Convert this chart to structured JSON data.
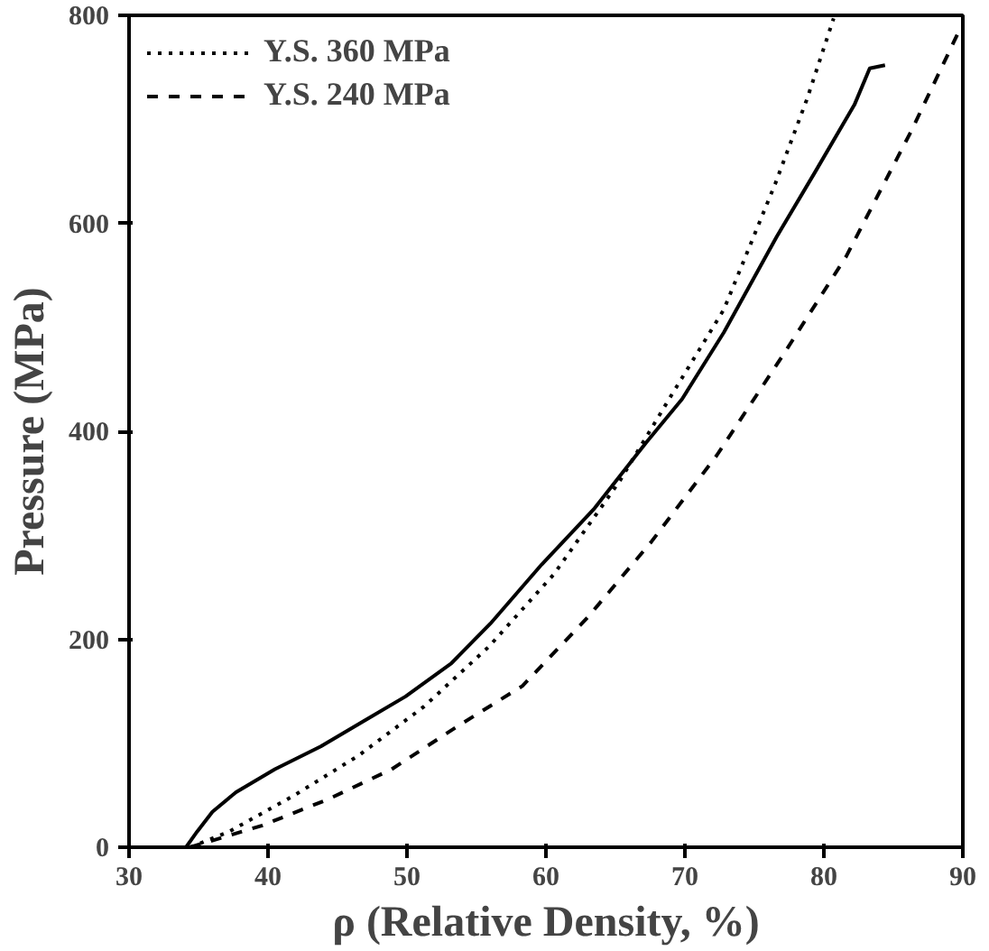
{
  "chart_data": {
    "type": "line",
    "xlabel": "ρ (Relative Density, %)",
    "ylabel": "Pressure (MPa)",
    "xlim": [
      30,
      90
    ],
    "ylim": [
      0,
      800
    ],
    "xticks": [
      30,
      40,
      50,
      60,
      70,
      80,
      90
    ],
    "yticks": [
      0,
      200,
      400,
      600,
      800
    ],
    "grid": false,
    "legend": "top left",
    "series": [
      {
        "color": "#000000",
        "line_style": "solid",
        "x": [
          34.1,
          34.9,
          36.0,
          37.7,
          40.5,
          43.8,
          47.1,
          49.9,
          53.2,
          56.0,
          59.7,
          63.5,
          67.2,
          69.8,
          72.8,
          76.6,
          79.4,
          82.2,
          83.3,
          84.4
        ],
        "values": [
          0,
          15,
          34,
          53,
          75,
          97,
          123,
          145,
          177,
          215,
          272,
          326,
          389,
          431,
          495,
          587,
          650,
          714,
          749,
          752
        ]
      },
      {
        "name": "Y.S. 360 MPa",
        "color": "#000000",
        "line_style": "dotted",
        "x": [
          34.4,
          37.2,
          41.9,
          46.5,
          51.2,
          55.9,
          60.6,
          65.3,
          69.0,
          72.8,
          76.5,
          78.8,
          80.7
        ],
        "values": [
          0,
          15,
          50,
          88,
          135,
          193,
          263,
          352,
          434,
          517,
          638,
          720,
          797
        ]
      },
      {
        "name": "Y.S. 240 MPa",
        "color": "#000000",
        "line_style": "dashed",
        "x": [
          34.4,
          39.6,
          44.3,
          48.9,
          53.6,
          58.3,
          63.0,
          67.6,
          72.3,
          77.0,
          81.6,
          86.3,
          89.8
        ],
        "values": [
          0,
          21,
          46,
          75,
          116,
          155,
          221,
          294,
          377,
          472,
          568,
          689,
          787
        ]
      }
    ]
  }
}
